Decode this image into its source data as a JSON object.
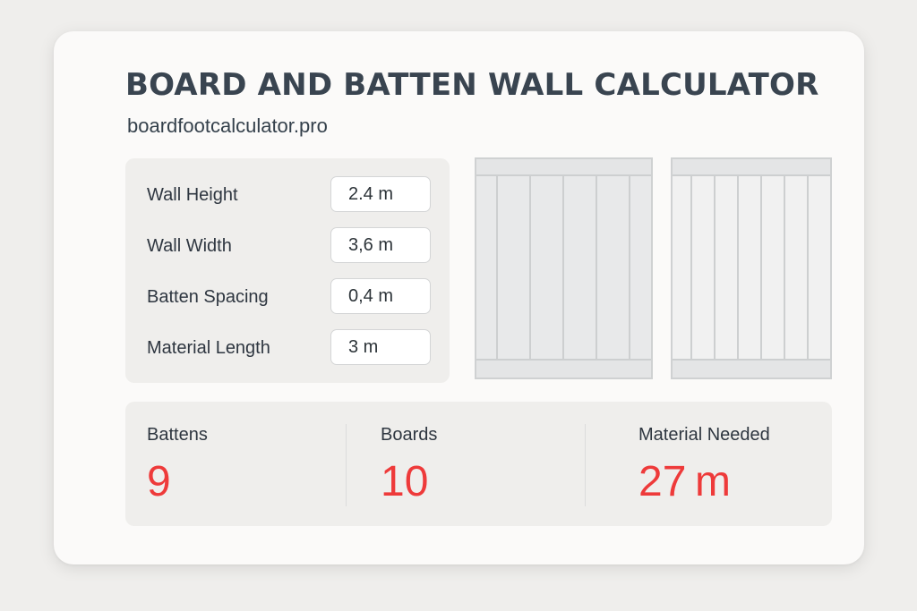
{
  "header": {
    "title": "BOARD AND BATTEN WALL CALCULATOR",
    "subtitle": "boardfootcalculator.pro"
  },
  "inputs": [
    {
      "label": "Wall Height",
      "value": "2.4 m"
    },
    {
      "label": "Wall Width",
      "value": "3,6 m"
    },
    {
      "label": "Batten Spacing",
      "value": "0,4 m"
    },
    {
      "label": "Material Length",
      "value": "3 m"
    }
  ],
  "results": {
    "battens": {
      "label": "Battens",
      "value": "9"
    },
    "boards": {
      "label": "Boards",
      "value": "10"
    },
    "material": {
      "label": "Material Needed",
      "value": "27 m"
    }
  },
  "colors": {
    "accent": "#ee3a3a",
    "title": "#394450",
    "panel": "#efeeec",
    "card": "#fbfaf9"
  }
}
